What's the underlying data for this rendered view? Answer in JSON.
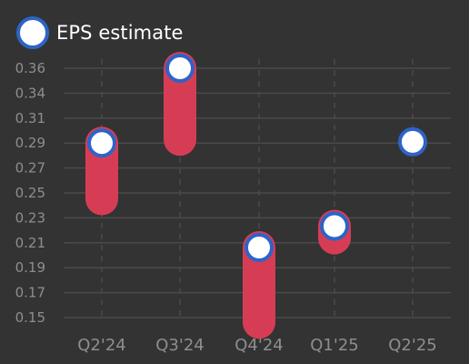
{
  "legend": {
    "label": "EPS estimate"
  },
  "colors": {
    "background": "#333333",
    "grid": "#4a4a4a",
    "bar": "#d63d55",
    "marker_fill": "#ffffff",
    "marker_stroke": "#2e63c7",
    "tick_text": "#8e8e8e"
  },
  "chart_data": {
    "type": "bar",
    "subtype": "floating-range with estimate markers",
    "categories": [
      "Q2'24",
      "Q3'24",
      "Q4'24",
      "Q1'25",
      "Q2'25"
    ],
    "series": [
      {
        "name": "EPS estimate",
        "values": [
          0.297,
          0.36,
          0.209,
          0.227,
          0.298
        ]
      }
    ],
    "ranges": [
      {
        "low": 0.25,
        "high": 0.297
      },
      {
        "low": 0.3,
        "high": 0.36
      },
      {
        "low": 0.146,
        "high": 0.209
      },
      {
        "low": 0.217,
        "high": 0.227
      },
      null
    ],
    "yticks": [
      "0.15",
      "0.17",
      "0.19",
      "0.21",
      "0.23",
      "0.25",
      "0.27",
      "0.29",
      "0.31",
      "0.34",
      "0.36"
    ],
    "ylim": [
      0.15,
      0.36
    ],
    "grid": true,
    "legend_position": "top-left",
    "title": "",
    "xlabel": "",
    "ylabel": ""
  }
}
